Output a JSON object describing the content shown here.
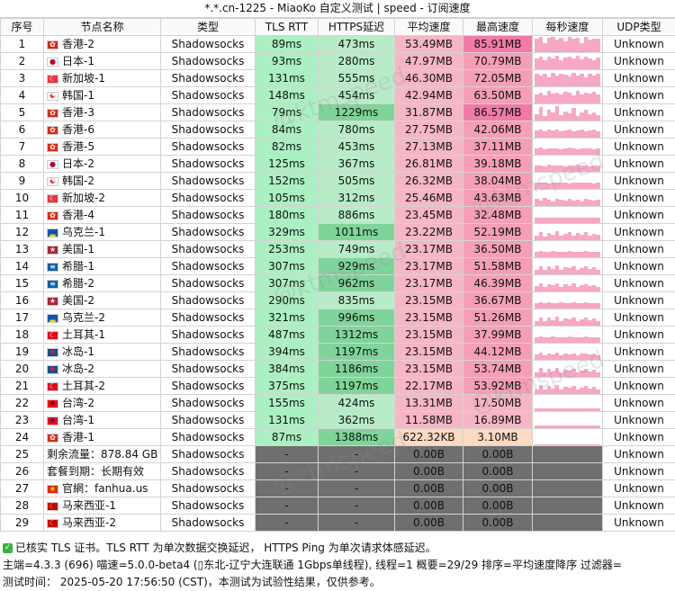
{
  "title": "*.*.cn-1225 - MiaoKo 自定义测试 | speed - 订阅速度",
  "headers": [
    "序号",
    "节点名称",
    "类型",
    "TLS RTT",
    "HTTPS延迟",
    "平均速度",
    "最高速度",
    "每秒速度",
    "UDP类型"
  ],
  "watermark": "@ktmspeed",
  "colors": {
    "tls_green": "#abf0c2",
    "https_light": "#b8ecc8",
    "https_dark": "#7fd49a",
    "avg_pink": "#f6b6c4",
    "max_pink": "#f59fb6",
    "max_hot": "#f27aa6",
    "low_orange": "#fbd9c2",
    "gray_cell": "#6f6f6f",
    "spark": "#f7a8c6"
  },
  "rows": [
    {
      "id": "1",
      "flag": "HK",
      "name": "香港-2",
      "type": "Shadowsocks",
      "tls": "89ms",
      "https": "473ms",
      "avg": "53.49MB",
      "max": "85.91MB",
      "udp": "Unknown",
      "spark": [
        0.9,
        1,
        0.6,
        0.95,
        1,
        0.8,
        0.95,
        0.7,
        1,
        0.9,
        0.95,
        0.6,
        1,
        0.85,
        0.9,
        0.9
      ]
    },
    {
      "id": "2",
      "flag": "JP",
      "name": "日本-1",
      "type": "Shadowsocks",
      "tls": "93ms",
      "https": "280ms",
      "avg": "47.97MB",
      "max": "70.79MB",
      "udp": "Unknown",
      "spark": [
        0.7,
        0.8,
        0.6,
        0.85,
        0.7,
        0.9,
        0.6,
        0.75,
        0.8,
        0.7,
        0.9,
        0.65,
        0.8,
        0.7,
        0.6,
        0.75
      ]
    },
    {
      "id": "3",
      "flag": "SG",
      "name": "新加坡-1",
      "type": "Shadowsocks",
      "tls": "131ms",
      "https": "555ms",
      "avg": "46.30MB",
      "max": "72.05MB",
      "udp": "Unknown",
      "spark": [
        0.8,
        0.7,
        0.85,
        0.6,
        0.9,
        0.7,
        0.8,
        0.75,
        0.65,
        0.9,
        0.7,
        0.8,
        0.6,
        0.85,
        0.7,
        0.8
      ]
    },
    {
      "id": "4",
      "flag": "KR",
      "name": "韩国-1",
      "type": "Shadowsocks",
      "tls": "148ms",
      "https": "454ms",
      "avg": "42.94MB",
      "max": "63.50MB",
      "udp": "Unknown",
      "spark": [
        0.6,
        0.7,
        0.55,
        0.8,
        0.65,
        0.7,
        0.6,
        0.75,
        0.7,
        0.55,
        0.8,
        0.6,
        0.7,
        0.65,
        0.75,
        0.6
      ]
    },
    {
      "id": "5",
      "flag": "HK",
      "name": "香港-3",
      "type": "Shadowsocks",
      "tls": "79ms",
      "https": "1229ms",
      "avg": "31.87MB",
      "max": "86.57MB",
      "udp": "Unknown",
      "spark": [
        0.4,
        0.9,
        0.3,
        0.7,
        0.5,
        0.95,
        0.35,
        0.6,
        0.45,
        0.8,
        0.3,
        0.5,
        0.7,
        0.4,
        0.55,
        0.35
      ]
    },
    {
      "id": "6",
      "flag": "HK",
      "name": "香港-6",
      "type": "Shadowsocks",
      "tls": "84ms",
      "https": "780ms",
      "avg": "27.75MB",
      "max": "42.06MB",
      "udp": "Unknown",
      "spark": [
        0.45,
        0.5,
        0.4,
        0.55,
        0.45,
        0.5,
        0.42,
        0.48,
        0.5,
        0.4,
        0.45,
        0.5,
        0.42,
        0.46,
        0.5,
        0.4
      ]
    },
    {
      "id": "7",
      "flag": "HK",
      "name": "香港-5",
      "type": "Shadowsocks",
      "tls": "82ms",
      "https": "453ms",
      "avg": "27.13MB",
      "max": "37.11MB",
      "udp": "Unknown",
      "spark": [
        0.4,
        0.45,
        0.38,
        0.42,
        0.44,
        0.4,
        0.36,
        0.42,
        0.45,
        0.4,
        0.38,
        0.43,
        0.4,
        0.42,
        0.38,
        0.4
      ]
    },
    {
      "id": "8",
      "flag": "JP",
      "name": "日本-2",
      "type": "Shadowsocks",
      "tls": "125ms",
      "https": "367ms",
      "avg": "26.81MB",
      "max": "39.18MB",
      "udp": "Unknown",
      "spark": [
        0.4,
        0.44,
        0.38,
        0.45,
        0.4,
        0.42,
        0.44,
        0.38,
        0.42,
        0.4,
        0.45,
        0.4,
        0.42,
        0.38,
        0.44,
        0.4
      ]
    },
    {
      "id": "9",
      "flag": "KR",
      "name": "韩国-2",
      "type": "Shadowsocks",
      "tls": "152ms",
      "https": "505ms",
      "avg": "26.32MB",
      "max": "38.04MB",
      "udp": "Unknown",
      "spark": [
        0.42,
        0.4,
        0.44,
        0.38,
        0.42,
        0.4,
        0.44,
        0.4,
        0.38,
        0.42,
        0.4,
        0.44,
        0.4,
        0.42,
        0.38,
        0.4
      ]
    },
    {
      "id": "10",
      "flag": "SG",
      "name": "新加坡-2",
      "type": "Shadowsocks",
      "tls": "105ms",
      "https": "312ms",
      "avg": "25.46MB",
      "max": "43.63MB",
      "udp": "Unknown",
      "spark": [
        0.45,
        0.35,
        0.5,
        0.4,
        0.3,
        0.48,
        0.4,
        0.35,
        0.45,
        0.38,
        0.42,
        0.3,
        0.46,
        0.4,
        0.35,
        0.42
      ]
    },
    {
      "id": "11",
      "flag": "HK",
      "name": "香港-4",
      "type": "Shadowsocks",
      "tls": "180ms",
      "https": "886ms",
      "avg": "23.45MB",
      "max": "32.48MB",
      "udp": "Unknown",
      "spark": [
        0.35,
        0.38,
        0.34,
        0.36,
        0.38,
        0.35,
        0.37,
        0.34,
        0.36,
        0.38,
        0.35,
        0.36,
        0.34,
        0.37,
        0.35,
        0.36
      ]
    },
    {
      "id": "12",
      "flag": "UA",
      "name": "乌克兰-1",
      "type": "Shadowsocks",
      "tls": "329ms",
      "https": "1011ms",
      "avg": "23.22MB",
      "max": "52.19MB",
      "udp": "Unknown",
      "spark": [
        0.3,
        0.55,
        0.25,
        0.45,
        0.35,
        0.6,
        0.28,
        0.4,
        0.5,
        0.3,
        0.45,
        0.35,
        0.55,
        0.3,
        0.4,
        0.35
      ]
    },
    {
      "id": "13",
      "flag": "US",
      "name": "美国-1",
      "type": "Shadowsocks",
      "tls": "253ms",
      "https": "749ms",
      "avg": "23.17MB",
      "max": "36.50MB",
      "udp": "Unknown",
      "spark": [
        0.36,
        0.4,
        0.35,
        0.38,
        0.4,
        0.34,
        0.38,
        0.36,
        0.4,
        0.35,
        0.38,
        0.36,
        0.4,
        0.35,
        0.38,
        0.36
      ]
    },
    {
      "id": "14",
      "flag": "GR",
      "name": "希腊-1",
      "type": "Shadowsocks",
      "tls": "307ms",
      "https": "929ms",
      "avg": "23.17MB",
      "max": "51.58MB",
      "udp": "Unknown",
      "spark": [
        0.3,
        0.55,
        0.3,
        0.5,
        0.35,
        0.6,
        0.3,
        0.45,
        0.4,
        0.55,
        0.3,
        0.4,
        0.5,
        0.35,
        0.45,
        0.3
      ]
    },
    {
      "id": "15",
      "flag": "GR",
      "name": "希腊-2",
      "type": "Shadowsocks",
      "tls": "307ms",
      "https": "962ms",
      "avg": "23.17MB",
      "max": "46.39MB",
      "udp": "Unknown",
      "spark": [
        0.35,
        0.5,
        0.3,
        0.45,
        0.4,
        0.5,
        0.3,
        0.45,
        0.35,
        0.5,
        0.3,
        0.4,
        0.45,
        0.35,
        0.4,
        0.3
      ]
    },
    {
      "id": "16",
      "flag": "US",
      "name": "美国-2",
      "type": "Shadowsocks",
      "tls": "290ms",
      "https": "835ms",
      "avg": "23.15MB",
      "max": "36.67MB",
      "udp": "Unknown",
      "spark": [
        0.38,
        0.4,
        0.36,
        0.4,
        0.38,
        0.36,
        0.4,
        0.38,
        0.36,
        0.4,
        0.38,
        0.36,
        0.4,
        0.38,
        0.36,
        0.38
      ]
    },
    {
      "id": "17",
      "flag": "UA",
      "name": "乌克兰-2",
      "type": "Shadowsocks",
      "tls": "321ms",
      "https": "996ms",
      "avg": "23.15MB",
      "max": "51.26MB",
      "udp": "Unknown",
      "spark": [
        0.3,
        0.55,
        0.3,
        0.5,
        0.35,
        0.6,
        0.3,
        0.45,
        0.4,
        0.55,
        0.3,
        0.4,
        0.5,
        0.35,
        0.45,
        0.3
      ]
    },
    {
      "id": "18",
      "flag": "TR",
      "name": "土耳其-1",
      "type": "Shadowsocks",
      "tls": "487ms",
      "https": "1312ms",
      "avg": "23.15MB",
      "max": "37.99MB",
      "udp": "Unknown",
      "spark": [
        0.36,
        0.4,
        0.35,
        0.38,
        0.4,
        0.36,
        0.38,
        0.35,
        0.4,
        0.36,
        0.38,
        0.35,
        0.4,
        0.36,
        0.38,
        0.35
      ]
    },
    {
      "id": "19",
      "flag": "IS",
      "name": "冰岛-1",
      "type": "Shadowsocks",
      "tls": "394ms",
      "https": "1197ms",
      "avg": "23.15MB",
      "max": "44.12MB",
      "udp": "Unknown",
      "spark": [
        0.35,
        0.45,
        0.3,
        0.42,
        0.38,
        0.46,
        0.32,
        0.4,
        0.36,
        0.44,
        0.3,
        0.4,
        0.42,
        0.35,
        0.4,
        0.32
      ]
    },
    {
      "id": "20",
      "flag": "IS",
      "name": "冰岛-2",
      "type": "Shadowsocks",
      "tls": "384ms",
      "https": "1186ms",
      "avg": "23.15MB",
      "max": "53.74MB",
      "udp": "Unknown",
      "spark": [
        0.3,
        0.6,
        0.3,
        0.5,
        0.35,
        0.58,
        0.3,
        0.45,
        0.4,
        0.55,
        0.3,
        0.42,
        0.5,
        0.35,
        0.45,
        0.3
      ]
    },
    {
      "id": "21",
      "flag": "TR",
      "name": "土耳其-2",
      "type": "Shadowsocks",
      "tls": "375ms",
      "https": "1197ms",
      "avg": "22.17MB",
      "max": "53.92MB",
      "udp": "Unknown",
      "spark": [
        0.3,
        0.6,
        0.28,
        0.5,
        0.35,
        0.6,
        0.3,
        0.45,
        0.4,
        0.55,
        0.3,
        0.4,
        0.5,
        0.33,
        0.45,
        0.3
      ]
    },
    {
      "id": "22",
      "flag": "TW",
      "name": "台湾-2",
      "type": "Shadowsocks",
      "tls": "155ms",
      "https": "424ms",
      "avg": "13.31MB",
      "max": "17.50MB",
      "udp": "Unknown",
      "spark": [
        0.18,
        0.2,
        0.17,
        0.19,
        0.2,
        0.18,
        0.19,
        0.17,
        0.2,
        0.18,
        0.19,
        0.17,
        0.2,
        0.18,
        0.19,
        0.18
      ]
    },
    {
      "id": "23",
      "flag": "TW",
      "name": "台湾-1",
      "type": "Shadowsocks",
      "tls": "131ms",
      "https": "362ms",
      "avg": "11.58MB",
      "max": "16.89MB",
      "udp": "Unknown",
      "spark": [
        0.16,
        0.18,
        0.15,
        0.17,
        0.18,
        0.16,
        0.17,
        0.15,
        0.18,
        0.16,
        0.17,
        0.15,
        0.18,
        0.16,
        0.17,
        0.16
      ]
    },
    {
      "id": "24",
      "flag": "HK",
      "name": "香港-1",
      "type": "Shadowsocks",
      "tls": "87ms",
      "https": "1388ms",
      "avg": "622.32KB",
      "max": "3.10MB",
      "udp": "Unknown",
      "spark": [
        0.02,
        0.03,
        0.02,
        0.02,
        0.03,
        0.02,
        0.02,
        0.03,
        0.02,
        0.02,
        0.03,
        0.02,
        0.02,
        0.03,
        0.02,
        0.02
      ]
    },
    {
      "id": "25",
      "flag": "",
      "name": "剩余流量：878.84 GB",
      "type": "Shadowsocks",
      "tls": "-",
      "https": "-",
      "avg": "0.00B",
      "max": "0.00B",
      "udp": "Unknown",
      "gray": true
    },
    {
      "id": "26",
      "flag": "",
      "name": "套餐到期：长期有效",
      "type": "Shadowsocks",
      "tls": "-",
      "https": "-",
      "avg": "0.00B",
      "max": "0.00B",
      "udp": "Unknown",
      "gray": true
    },
    {
      "id": "27",
      "flag": "CN",
      "name": "官網：fanhua.us",
      "type": "Shadowsocks",
      "tls": "-",
      "https": "-",
      "avg": "0.00B",
      "max": "0.00B",
      "udp": "Unknown",
      "gray": true
    },
    {
      "id": "28",
      "flag": "MY",
      "name": "马来西亚-1",
      "type": "Shadowsocks",
      "tls": "-",
      "https": "-",
      "avg": "0.00B",
      "max": "0.00B",
      "udp": "Unknown",
      "gray": true
    },
    {
      "id": "29",
      "flag": "MY",
      "name": "马来西亚-2",
      "type": "Shadowsocks",
      "tls": "-",
      "https": "-",
      "avg": "0.00B",
      "max": "0.00B",
      "udp": "Unknown",
      "gray": true
    }
  ],
  "flags": {
    "HK": {
      "bg": "#de2910",
      "glyph": "✿",
      "fg": "#ffffff"
    },
    "JP": {
      "bg": "#ffffff",
      "glyph": "●",
      "fg": "#bc002d"
    },
    "SG": {
      "bg": "#ef3340",
      "glyph": "☾",
      "fg": "#ffffff"
    },
    "KR": {
      "bg": "#ffffff",
      "glyph": "☯",
      "fg": "#cd2e3a"
    },
    "UA": {
      "bg": "#0057b7",
      "glyph": "▂",
      "fg": "#ffd700"
    },
    "US": {
      "bg": "#b22234",
      "glyph": "★",
      "fg": "#ffffff"
    },
    "GR": {
      "bg": "#0d5eaf",
      "glyph": "≡",
      "fg": "#ffffff"
    },
    "TR": {
      "bg": "#e30a17",
      "glyph": "☾",
      "fg": "#ffffff"
    },
    "IS": {
      "bg": "#02529c",
      "glyph": "✚",
      "fg": "#dc1e35"
    },
    "TW": {
      "bg": "#fe0000",
      "glyph": "☀",
      "fg": "#000095"
    },
    "CN": {
      "bg": "#de2910",
      "glyph": "★",
      "fg": "#ffde00"
    },
    "MY": {
      "bg": "#cc0001",
      "glyph": "☾",
      "fg": "#ffcc00"
    }
  },
  "footer": {
    "line1": "已核实 TLS 证书。TLS RTT 为单次数据交换延迟， HTTPS Ping 为单次请求体感延迟。",
    "line2": "主端=4.3.3 (696) 喵速=5.0.0-beta4 (▯东北-辽宁大连联通 1Gbps单线程), 线程=1 概要=29/29 排序=平均速度降序 过滤器=",
    "line3": "测试时间： 2025-05-20 17:56:50 (CST)，本测试为试验性结果，仅供参考。"
  }
}
